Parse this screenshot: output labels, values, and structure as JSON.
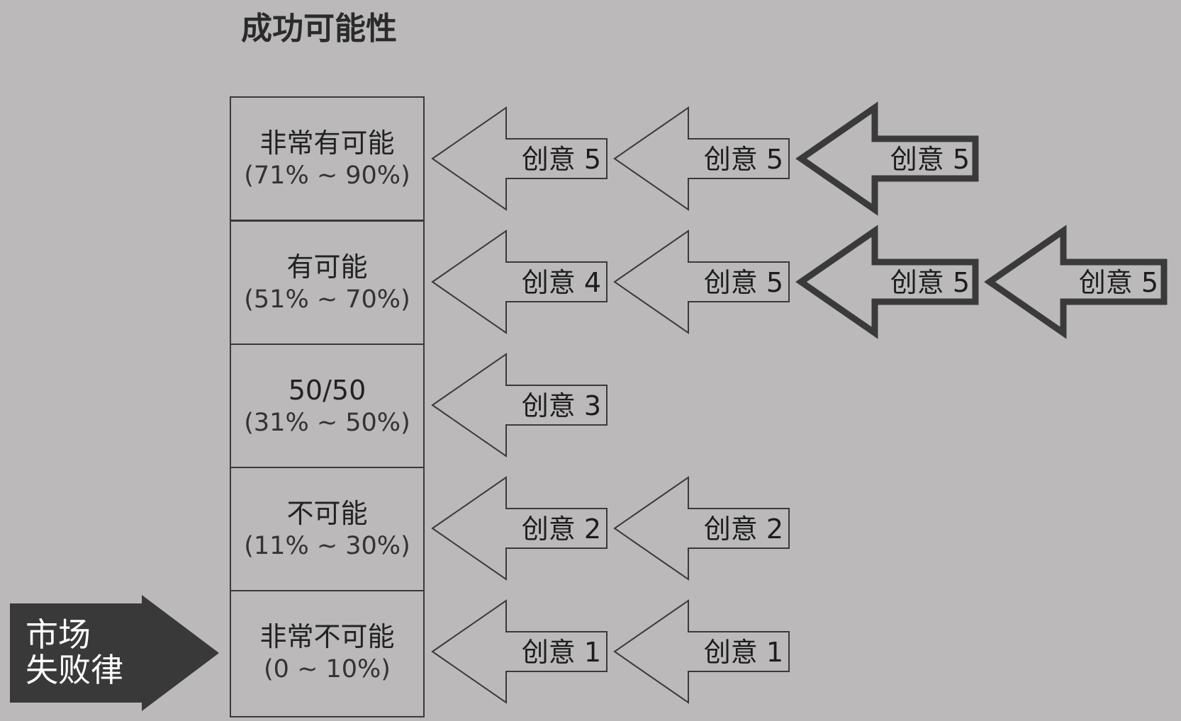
{
  "title": "成功可能性",
  "levels": [
    {
      "name": "非常有可能",
      "range": "(71% ~ 90%)"
    },
    {
      "name": "有可能",
      "range": "(51% ~ 70%)"
    },
    {
      "name": "50/50",
      "range": "(31% ~ 50%)"
    },
    {
      "name": "不可能",
      "range": "(11% ~ 30%)"
    },
    {
      "name": "非常不可能",
      "range": "(0 ~ 10%)"
    }
  ],
  "idea_rows": [
    [
      {
        "label": "创意 5",
        "bold": false
      },
      {
        "label": "创意 5",
        "bold": false
      },
      {
        "label": "创意 5",
        "bold": true
      }
    ],
    [
      {
        "label": "创意 4",
        "bold": false
      },
      {
        "label": "创意 5",
        "bold": false
      },
      {
        "label": "创意 5",
        "bold": true
      },
      {
        "label": "创意 5",
        "bold": true
      }
    ],
    [
      {
        "label": "创意 3",
        "bold": false
      }
    ],
    [
      {
        "label": "创意 2",
        "bold": false
      },
      {
        "label": "创意 2",
        "bold": false
      }
    ],
    [
      {
        "label": "创意 1",
        "bold": false
      },
      {
        "label": "创意 1",
        "bold": false
      }
    ]
  ],
  "market": {
    "line1": "市场",
    "line2": "失败律"
  },
  "colors": {
    "background": "#bbb9ba",
    "stroke": "#3a3a3a",
    "market_fill": "#3a393a",
    "market_text": "#ffffff"
  }
}
